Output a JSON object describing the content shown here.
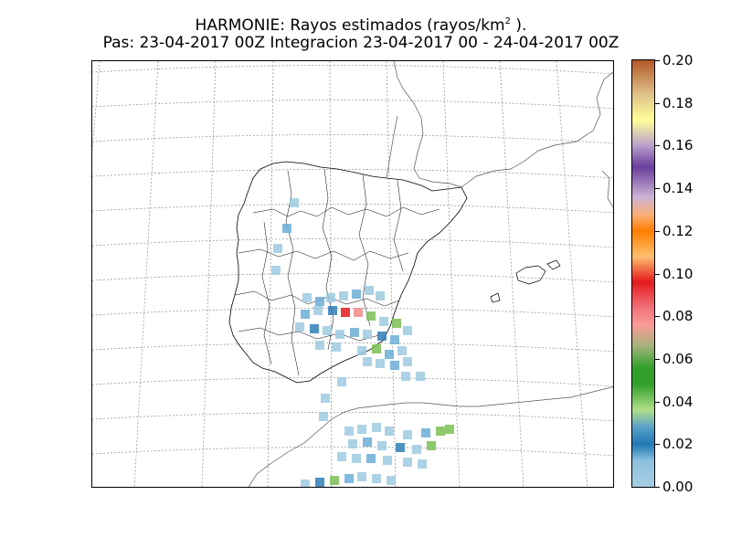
{
  "title": {
    "line1_main": "HARMONIE: Rayos estimados  (rayos/km",
    "line1_sup": "2",
    "line1_end": " ).",
    "line2": "Pas: 23-04-2017 00Z Integracion 23-04-2017 00 - 24-04-2017 00Z"
  },
  "colorbar": {
    "ticks": [
      "0.00",
      "0.02",
      "0.04",
      "0.06",
      "0.08",
      "0.10",
      "0.12",
      "0.14",
      "0.16",
      "0.18",
      "0.20"
    ],
    "colors": [
      "#a6cee3",
      "#1f78b4",
      "#b2df8a",
      "#33a02c",
      "#fb9a99",
      "#e31a1c",
      "#fdbf6f",
      "#ff7f00",
      "#cab2d6",
      "#6a3d9a",
      "#ffff99",
      "#b15928"
    ]
  },
  "map": {
    "region": "Iberian Peninsula and North Africa",
    "gridlines": "dotted",
    "data_shown": "estimated lightning strikes per km2"
  }
}
